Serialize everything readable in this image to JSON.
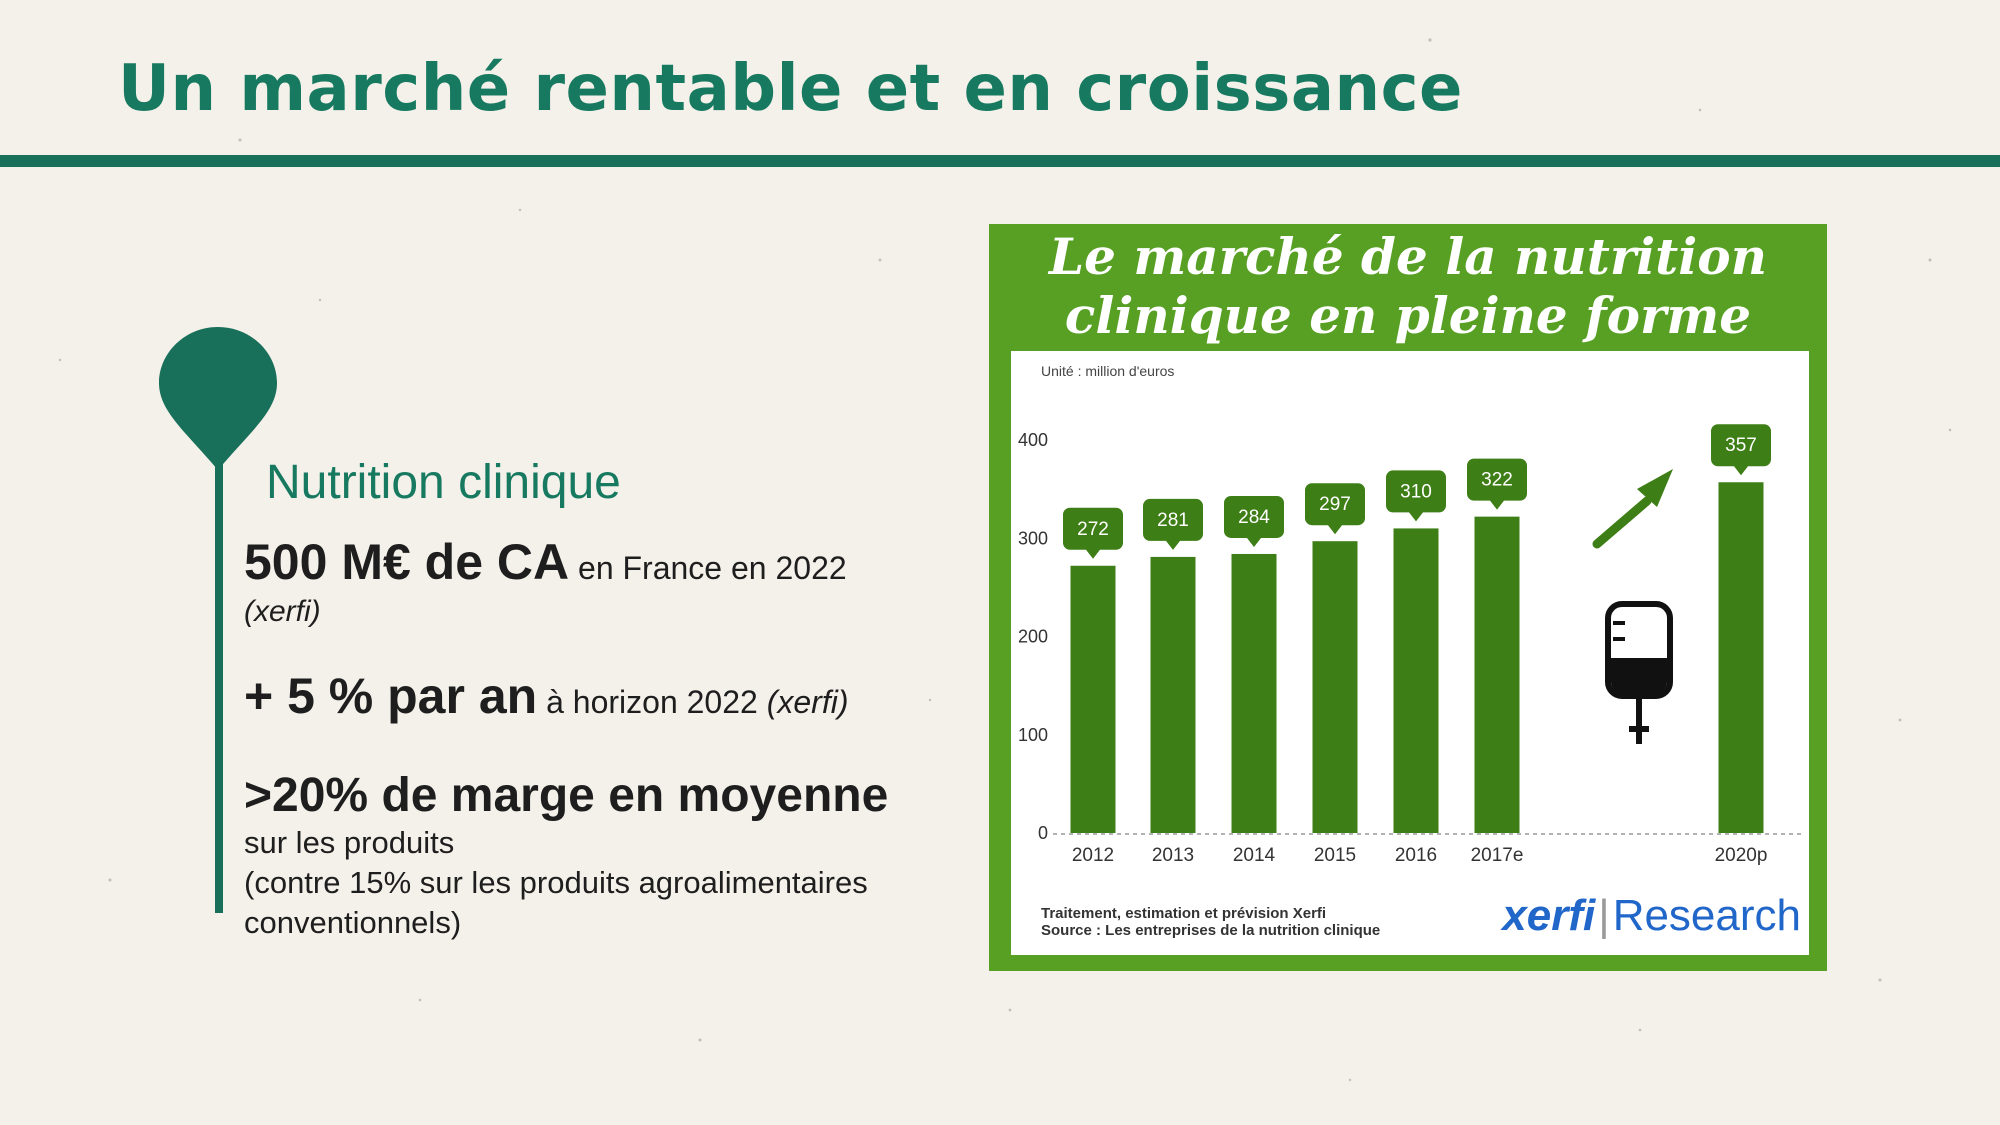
{
  "slide": {
    "title": "Un marché rentable et en croissance",
    "section": "Nutrition clinique",
    "facts": [
      {
        "big": "500 M€ de CA",
        "small": " en France  en 2022",
        "source": "(xerfi)"
      },
      {
        "big": "+ 5 % par an",
        "small": " à horizon 2022 ",
        "source": "(xerfi)"
      },
      {
        "big": ">20% de marge en moyenne",
        "lines": [
          "sur les produits",
          "(contre 15% sur les produits agroalimentaires",
          "conventionnels)"
        ]
      }
    ]
  },
  "colors": {
    "accent": "#186f5a",
    "title_text": "#177a60",
    "chart_frame": "#58a024",
    "bar": "#3e7e16"
  },
  "icons": [
    "map-pin-icon",
    "trend-arrow-icon",
    "iv-drip-bag-icon"
  ],
  "chart_data": {
    "type": "bar",
    "title": "Le marché de la nutrition clinique en pleine forme",
    "title_lines": [
      "Le marché de la nutrition",
      "clinique en pleine forme"
    ],
    "unit_note": "Unité : million d'euros",
    "categories": [
      "2012",
      "2013",
      "2014",
      "2015",
      "2016",
      "2017e",
      "2020p"
    ],
    "values": [
      272,
      281,
      284,
      297,
      310,
      322,
      357
    ],
    "y_ticks": [
      "0",
      "100",
      "200",
      "300",
      "400"
    ],
    "ylim": [
      0,
      400
    ],
    "grid": false,
    "xlabel": "",
    "ylabel": "",
    "footnote": [
      "Traitement, estimation et prévision Xerfi",
      "Source : Les entreprises de la nutrition clinique"
    ],
    "brand": {
      "part1": "xerfi",
      "separator": "|",
      "part2": "Research"
    }
  }
}
